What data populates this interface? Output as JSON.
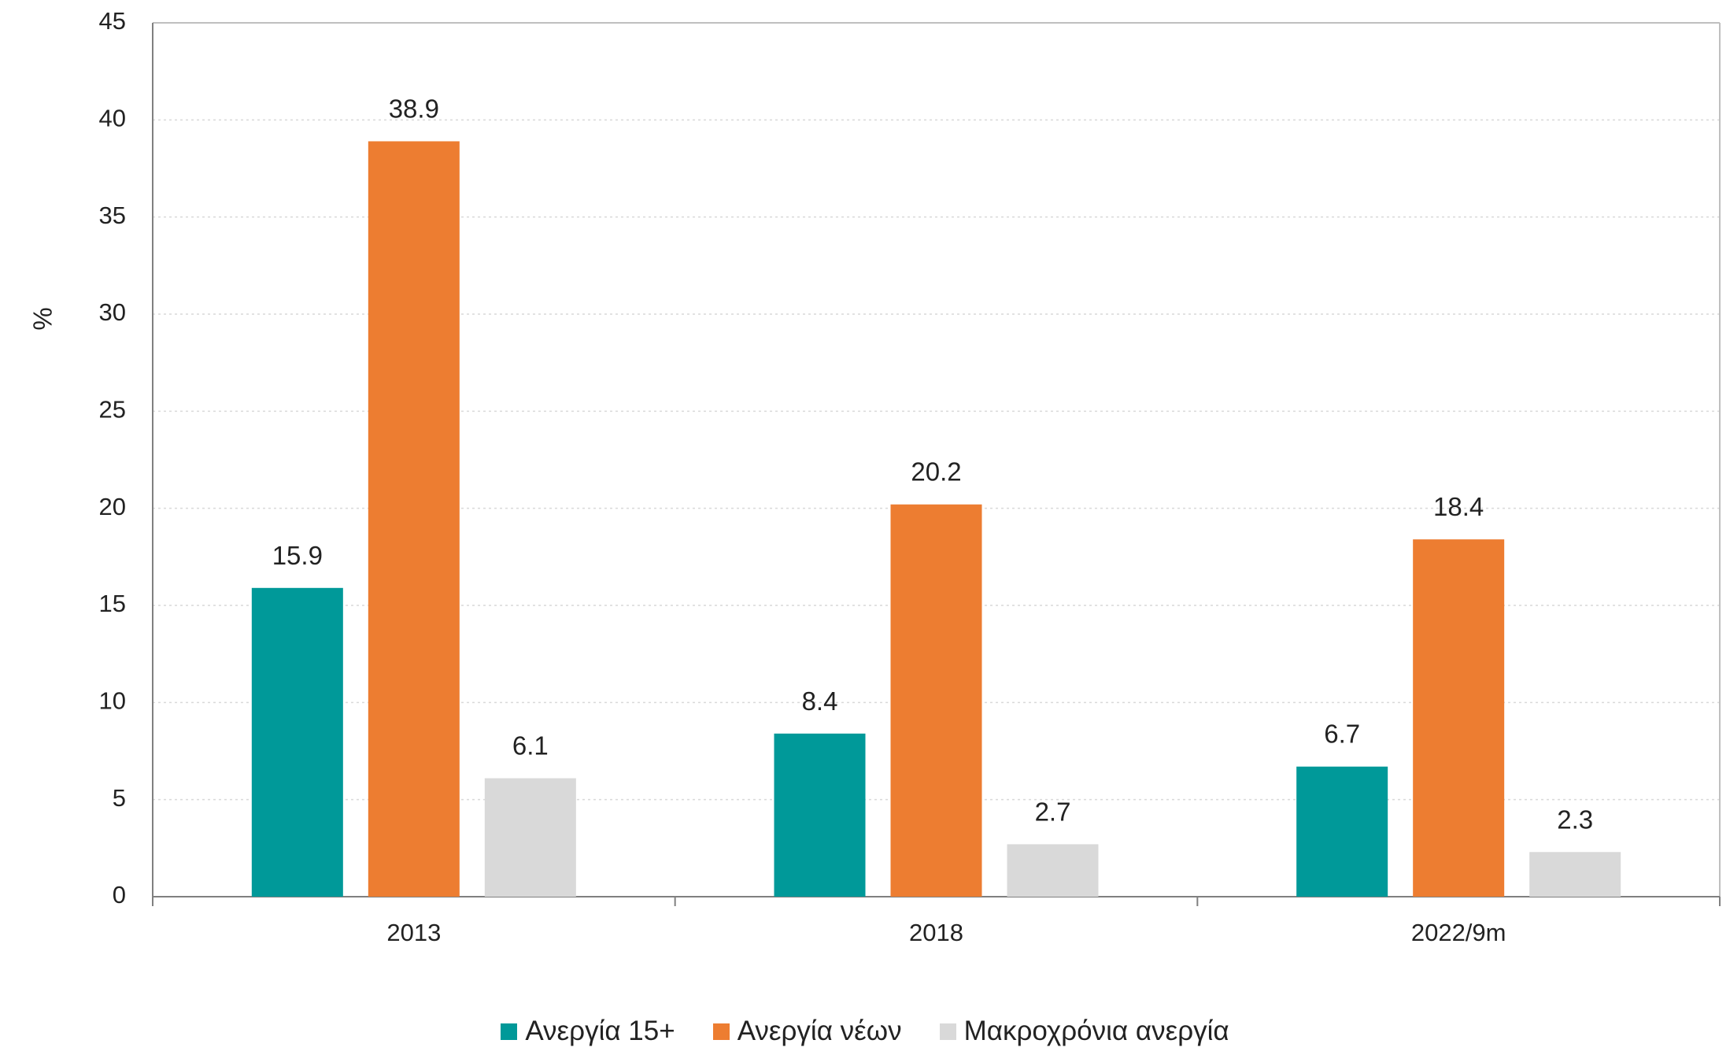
{
  "chart_data": {
    "type": "bar",
    "categories": [
      "2013",
      "2018",
      "2022/9m"
    ],
    "series": [
      {
        "name": "Ανεργία 15+",
        "values": [
          15.9,
          8.4,
          6.7
        ],
        "color": "#009999"
      },
      {
        "name": "Ανεργία νέων",
        "values": [
          38.9,
          20.2,
          18.4
        ],
        "color": "#ED7D31"
      },
      {
        "name": "Μακροχρόνια ανεργία",
        "values": [
          6.1,
          2.7,
          2.3
        ],
        "color": "#D9D9D9"
      }
    ],
    "ylabel": "%",
    "ylim": [
      0,
      45
    ],
    "yticks": [
      0,
      5,
      10,
      15,
      20,
      25,
      30,
      35,
      40,
      45
    ],
    "grid": true,
    "legend_position": "bottom"
  }
}
